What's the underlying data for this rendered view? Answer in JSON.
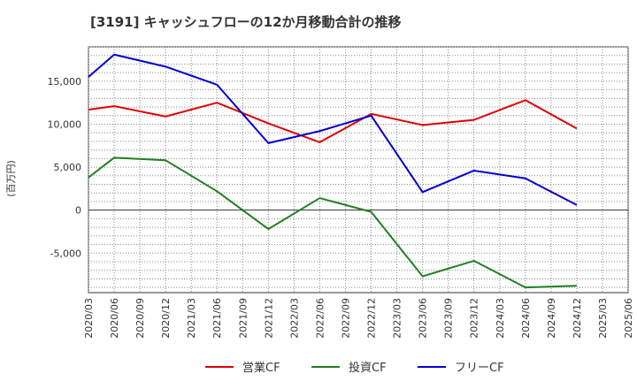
{
  "chart_data": {
    "type": "line",
    "title": "[3191]  キャッシュフローの12か月移動合計の推移",
    "ylabel": "(百万円)",
    "xlabel": "",
    "ylim": [
      -9600,
      19000
    ],
    "yticks": [
      -5000,
      0,
      5000,
      10000,
      15000
    ],
    "ytick_labels": [
      "-5,000",
      "0",
      "5,000",
      "10,000",
      "15,000"
    ],
    "categories": [
      "2020/03",
      "2020/06",
      "2020/09",
      "2020/12",
      "2021/03",
      "2021/06",
      "2021/09",
      "2021/12",
      "2022/03",
      "2022/06",
      "2022/09",
      "2022/12",
      "2023/03",
      "2023/06",
      "2023/09",
      "2023/12",
      "2024/03",
      "2024/06",
      "2024/09",
      "2024/12",
      "2025/03",
      "2025/06"
    ],
    "grid": true,
    "legend_position": "bottom",
    "series": [
      {
        "name": "営業CF",
        "color": "#e00000",
        "values": [
          11700,
          12100,
          null,
          10900,
          null,
          12500,
          null,
          10100,
          null,
          7900,
          null,
          11200,
          null,
          9900,
          null,
          10500,
          null,
          12800,
          null,
          9500,
          null,
          null
        ]
      },
      {
        "name": "投資CF",
        "color": "#208020",
        "values": [
          3800,
          6100,
          null,
          5800,
          null,
          2200,
          null,
          -2200,
          null,
          1400,
          null,
          -200,
          null,
          -7700,
          null,
          -5900,
          null,
          -9000,
          null,
          -8800,
          null,
          null
        ]
      },
      {
        "name": "フリーCF",
        "color": "#0000d0",
        "values": [
          15500,
          18100,
          null,
          16700,
          null,
          14600,
          null,
          7800,
          null,
          9200,
          null,
          11000,
          null,
          2100,
          null,
          4600,
          null,
          3700,
          null,
          600,
          null,
          null
        ]
      }
    ]
  }
}
